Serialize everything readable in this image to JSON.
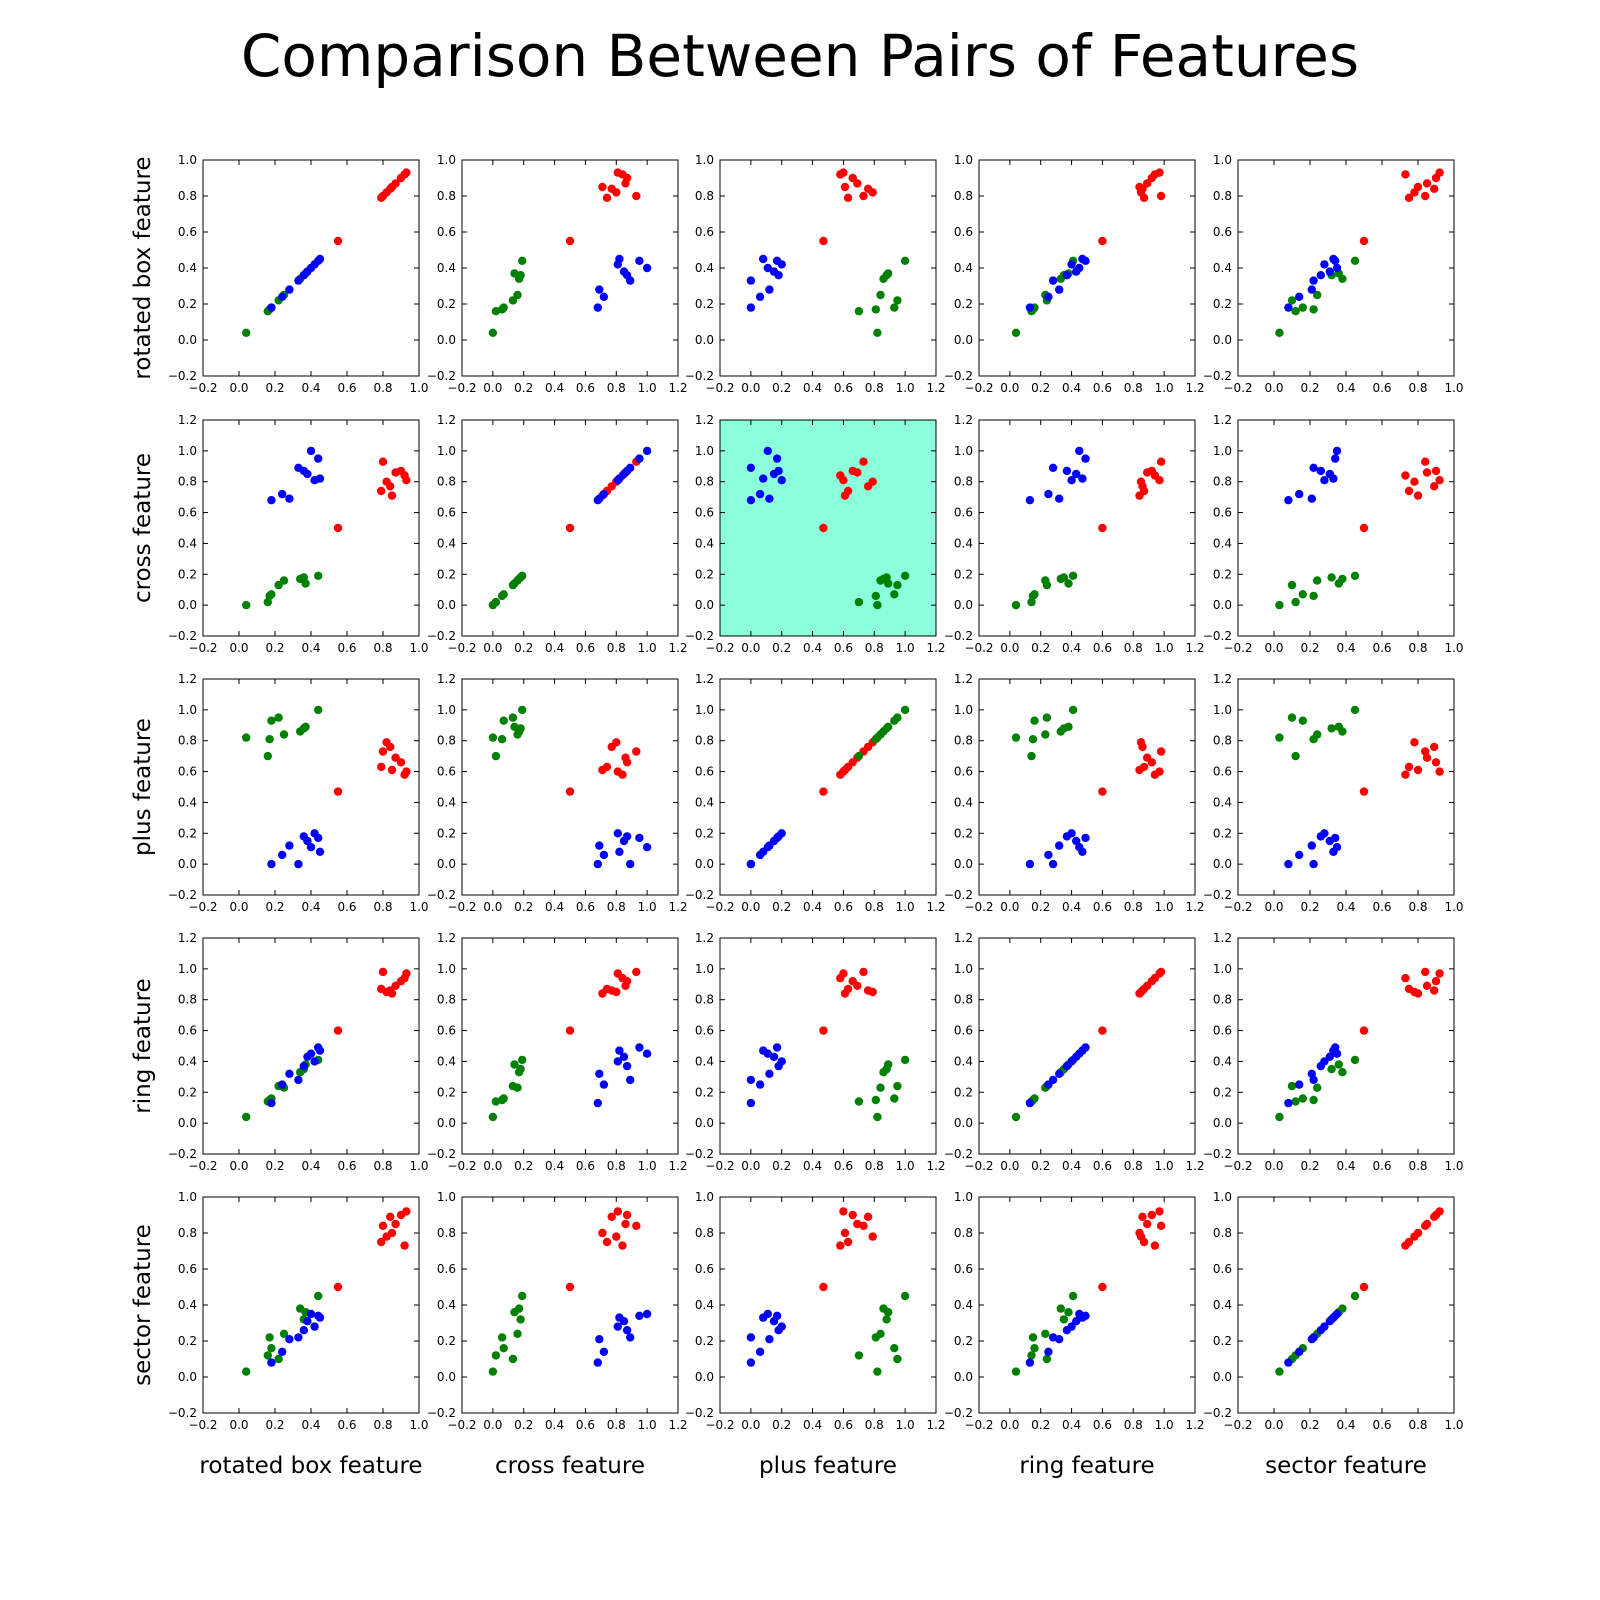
{
  "chart_data": {
    "type": "scatter",
    "title": "Comparison Between Pairs of Features",
    "features": [
      "rotated box feature",
      "cross feature",
      "plus feature",
      "ring feature",
      "sector feature"
    ],
    "highlight_panel": {
      "row": 1,
      "col": 2,
      "color": "#8cffdb"
    },
    "class_colors": {
      "red": "#ff0000",
      "green": "#008000",
      "blue": "#0000ff"
    },
    "axis_ticks": {
      "narrow": [
        -0.2,
        0.0,
        0.2,
        0.4,
        0.6,
        0.8,
        1.0
      ],
      "wide": [
        -0.2,
        0.0,
        0.2,
        0.4,
        0.6,
        0.8,
        1.0,
        1.2
      ]
    },
    "feature_axis_range": {
      "rotated box feature": "narrow",
      "cross feature": "wide",
      "plus feature": "wide",
      "ring feature": "wide",
      "sector feature": "narrow"
    },
    "samples": {
      "red": [
        [
          0.93,
          0.81,
          0.6,
          0.97,
          0.92
        ],
        [
          0.8,
          0.93,
          0.73,
          0.98,
          0.84
        ],
        [
          0.87,
          0.86,
          0.69,
          0.89,
          0.85
        ],
        [
          0.82,
          0.8,
          0.79,
          0.85,
          0.78
        ],
        [
          0.9,
          0.87,
          0.66,
          0.92,
          0.9
        ],
        [
          0.79,
          0.74,
          0.63,
          0.87,
          0.75
        ],
        [
          0.85,
          0.71,
          0.61,
          0.84,
          0.8
        ],
        [
          0.92,
          0.84,
          0.58,
          0.94,
          0.73
        ],
        [
          0.84,
          0.77,
          0.76,
          0.86,
          0.89
        ],
        [
          0.55,
          0.5,
          0.47,
          0.6,
          0.5
        ]
      ],
      "green": [
        [
          0.04,
          0.0,
          0.82,
          0.04,
          0.03
        ],
        [
          0.17,
          0.06,
          0.81,
          0.15,
          0.22
        ],
        [
          0.16,
          0.02,
          0.7,
          0.14,
          0.12
        ],
        [
          0.22,
          0.13,
          0.95,
          0.24,
          0.1
        ],
        [
          0.36,
          0.18,
          0.88,
          0.35,
          0.32
        ],
        [
          0.34,
          0.17,
          0.86,
          0.33,
          0.38
        ],
        [
          0.18,
          0.07,
          0.93,
          0.16,
          0.16
        ],
        [
          0.44,
          0.19,
          1.0,
          0.41,
          0.45
        ],
        [
          0.25,
          0.16,
          0.84,
          0.23,
          0.24
        ],
        [
          0.37,
          0.14,
          0.89,
          0.38,
          0.36
        ]
      ],
      "blue": [
        [
          0.45,
          0.82,
          0.08,
          0.47,
          0.33
        ],
        [
          0.44,
          0.95,
          0.17,
          0.49,
          0.34
        ],
        [
          0.38,
          0.85,
          0.15,
          0.43,
          0.31
        ],
        [
          0.33,
          0.89,
          0.0,
          0.28,
          0.22
        ],
        [
          0.28,
          0.69,
          0.12,
          0.32,
          0.21
        ],
        [
          0.18,
          0.68,
          0.0,
          0.13,
          0.08
        ],
        [
          0.42,
          0.81,
          0.2,
          0.4,
          0.28
        ],
        [
          0.24,
          0.72,
          0.06,
          0.25,
          0.14
        ],
        [
          0.36,
          0.87,
          0.18,
          0.37,
          0.26
        ],
        [
          0.4,
          1.0,
          0.11,
          0.45,
          0.35
        ]
      ]
    }
  }
}
